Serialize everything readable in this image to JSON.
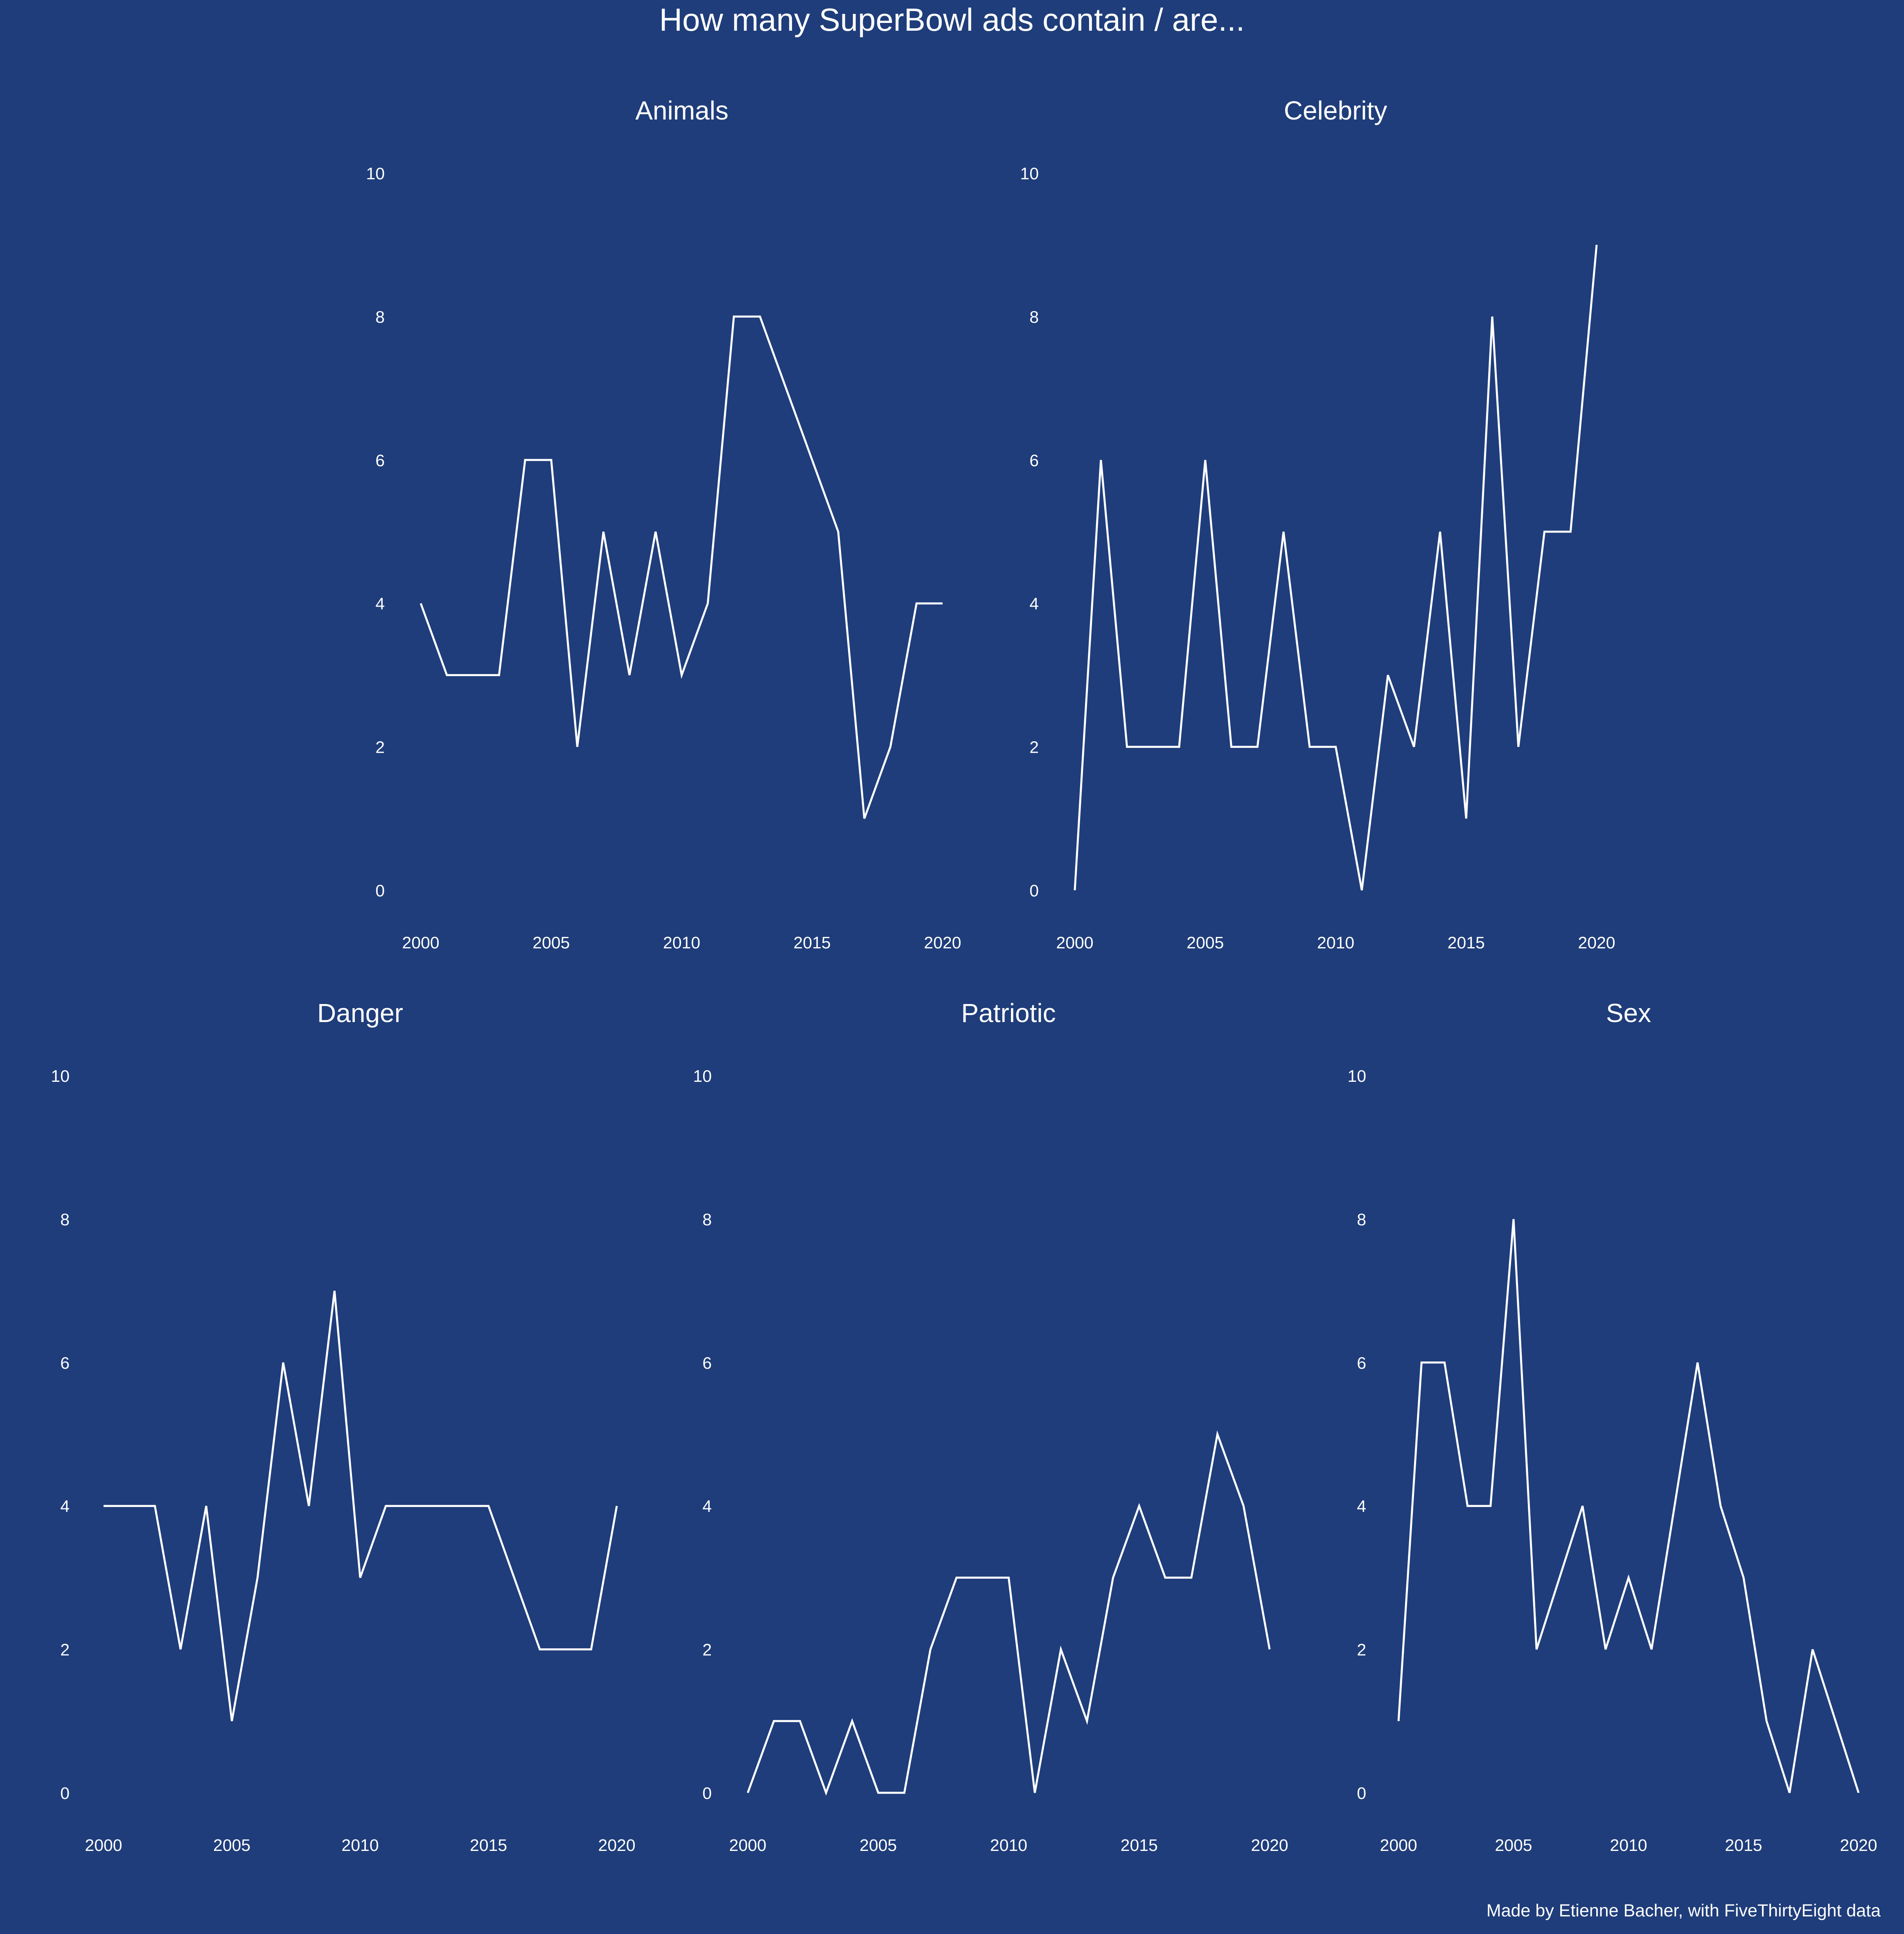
{
  "title": "How many SuperBowl ads contain / are...",
  "caption": "Made by Etienne Bacher, with FiveThirtyEight data",
  "colors": {
    "background": "#1f3d7a",
    "line": "#ffffff",
    "text": "#ffffff"
  },
  "chart_data": [
    {
      "type": "line",
      "title": "Animals",
      "x": [
        2000,
        2001,
        2002,
        2003,
        2004,
        2005,
        2006,
        2007,
        2008,
        2009,
        2010,
        2011,
        2012,
        2013,
        2014,
        2015,
        2016,
        2017,
        2018,
        2019,
        2020
      ],
      "values": [
        4,
        3,
        3,
        3,
        6,
        6,
        2,
        5,
        3,
        5,
        3,
        4,
        8,
        8,
        7,
        6,
        5,
        1,
        2,
        4,
        4
      ],
      "xlim": [
        2000,
        2020
      ],
      "ylim": [
        0,
        10
      ],
      "xticks": [
        2000,
        2005,
        2010,
        2015,
        2020
      ],
      "yticks": [
        0,
        2,
        4,
        6,
        8,
        10
      ],
      "grid": false
    },
    {
      "type": "line",
      "title": "Celebrity",
      "x": [
        2000,
        2001,
        2002,
        2003,
        2004,
        2005,
        2006,
        2007,
        2008,
        2009,
        2010,
        2011,
        2012,
        2013,
        2014,
        2015,
        2016,
        2017,
        2018,
        2019,
        2020
      ],
      "values": [
        0,
        6,
        2,
        2,
        2,
        6,
        2,
        2,
        5,
        2,
        2,
        0,
        3,
        2,
        5,
        1,
        8,
        2,
        5,
        5,
        9
      ],
      "xlim": [
        2000,
        2020
      ],
      "ylim": [
        0,
        10
      ],
      "xticks": [
        2000,
        2005,
        2010,
        2015,
        2020
      ],
      "yticks": [
        0,
        2,
        4,
        6,
        8,
        10
      ],
      "grid": false
    },
    {
      "type": "line",
      "title": "Danger",
      "x": [
        2000,
        2001,
        2002,
        2003,
        2004,
        2005,
        2006,
        2007,
        2008,
        2009,
        2010,
        2011,
        2012,
        2013,
        2014,
        2015,
        2016,
        2017,
        2018,
        2019,
        2020
      ],
      "values": [
        4,
        4,
        4,
        2,
        4,
        1,
        3,
        6,
        4,
        7,
        3,
        4,
        4,
        4,
        4,
        4,
        3,
        2,
        2,
        2,
        4
      ],
      "xlim": [
        2000,
        2020
      ],
      "ylim": [
        0,
        10
      ],
      "xticks": [
        2000,
        2005,
        2010,
        2015,
        2020
      ],
      "yticks": [
        0,
        2,
        4,
        6,
        8,
        10
      ],
      "grid": false
    },
    {
      "type": "line",
      "title": "Patriotic",
      "x": [
        2000,
        2001,
        2002,
        2003,
        2004,
        2005,
        2006,
        2007,
        2008,
        2009,
        2010,
        2011,
        2012,
        2013,
        2014,
        2015,
        2016,
        2017,
        2018,
        2019,
        2020
      ],
      "values": [
        0,
        1,
        1,
        0,
        1,
        0,
        0,
        2,
        3,
        3,
        3,
        0,
        2,
        1,
        3,
        4,
        3,
        3,
        5,
        4,
        2
      ],
      "xlim": [
        2000,
        2020
      ],
      "ylim": [
        0,
        10
      ],
      "xticks": [
        2000,
        2005,
        2010,
        2015,
        2020
      ],
      "yticks": [
        0,
        2,
        4,
        6,
        8,
        10
      ],
      "grid": false
    },
    {
      "type": "line",
      "title": "Sex",
      "x": [
        2000,
        2001,
        2002,
        2003,
        2004,
        2005,
        2006,
        2007,
        2008,
        2009,
        2010,
        2011,
        2012,
        2013,
        2014,
        2015,
        2016,
        2017,
        2018,
        2019,
        2020
      ],
      "values": [
        1,
        6,
        6,
        4,
        4,
        8,
        2,
        3,
        4,
        2,
        3,
        2,
        4,
        6,
        4,
        3,
        1,
        0,
        2,
        1,
        0
      ],
      "xlim": [
        2000,
        2020
      ],
      "ylim": [
        0,
        10
      ],
      "xticks": [
        2000,
        2005,
        2010,
        2015,
        2020
      ],
      "yticks": [
        0,
        2,
        4,
        6,
        8,
        10
      ],
      "grid": false
    }
  ]
}
